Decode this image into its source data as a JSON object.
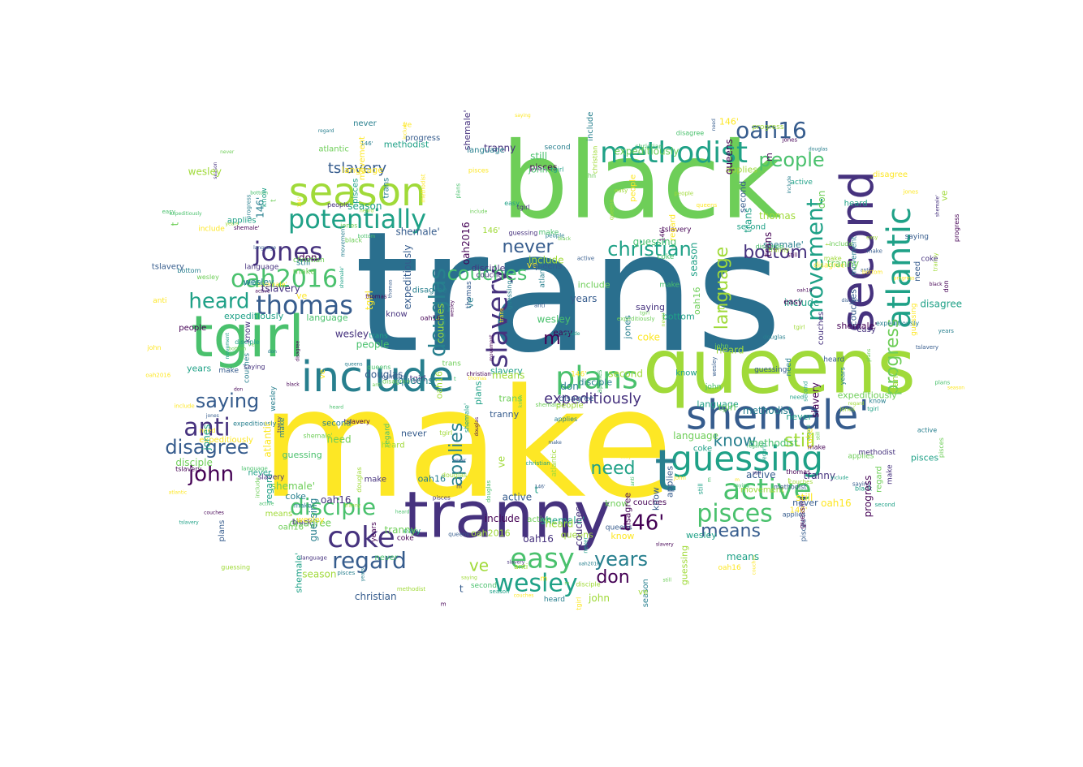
{
  "palette": {
    "yellow": "#fde725",
    "lime": "#a0da39",
    "green": "#4ac16d",
    "mint": "#6ece58",
    "teal": "#1fa187",
    "cyan": "#277f8e",
    "blue": "#365c8d",
    "indigo": "#46327e",
    "purple": "#440154"
  },
  "words": {
    "trans": "trans",
    "make": "make",
    "black": "black",
    "queens": "queens",
    "tgirl": "tgirl",
    "tranny": "tranny",
    "shemale": "shemale'",
    "second": "second",
    "include": "include",
    "season": "season",
    "methodist": "methodist",
    "potentially": "potentially",
    "guessing": "guessing",
    "atlantic": "atlantic",
    "t": "t",
    "jones": "jones",
    "oah2016": "oah2016",
    "thomas": "thomas",
    "active": "active",
    "plans": "plans",
    "movement": "movement",
    "progress": "progress",
    "douglas": "douglas",
    "slavery": "slavery",
    "coke": "coke",
    "pisces": "pisces",
    "easy": "easy",
    "wesley": "wesley",
    "disciple": "disciple",
    "regard": "regard",
    "oah16": "oah16",
    "anti": "anti",
    "heard": "heard",
    "saying": "saying",
    "christian": "christian",
    "couches": "couches",
    "people": "people",
    "language": "language",
    "disagree": "disagree",
    "john": "john",
    "bottom": "bottom",
    "applies": "applies",
    "n146": "146'",
    "years": "years",
    "expeditiously": "expeditiously",
    "never": "never",
    "means": "means",
    "need": "need",
    "know": "know",
    "still": "still",
    "don": "don",
    "ve": "ve",
    "m": "m",
    "tslavery": "tslavery"
  }
}
